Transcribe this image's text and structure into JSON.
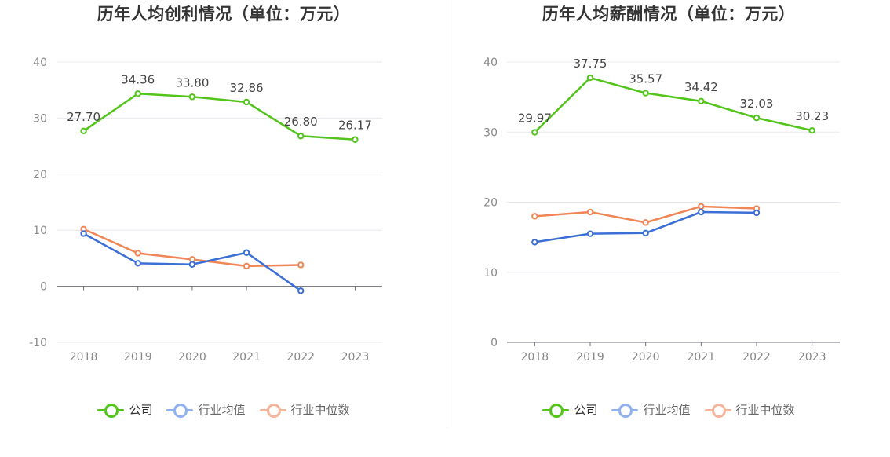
{
  "chart_data": [
    {
      "type": "line",
      "title": "历年人均创利情况（单位：万元）",
      "categories": [
        "2018",
        "2019",
        "2020",
        "2021",
        "2022",
        "2023"
      ],
      "ylim": [
        -10,
        40
      ],
      "yticks": [
        -10,
        0,
        10,
        20,
        30,
        40
      ],
      "grid": true,
      "legend_position": "bottom",
      "series": [
        {
          "name": "公司",
          "color": "#52c41a",
          "values": [
            27.7,
            34.36,
            33.8,
            32.86,
            26.8,
            26.17
          ],
          "labels": [
            "27.70",
            "34.36",
            "33.80",
            "32.86",
            "26.80",
            "26.17"
          ]
        },
        {
          "name": "行业均值",
          "color": "#3b6fd6",
          "values": [
            9.4,
            4.1,
            3.9,
            6.0,
            -0.8,
            null
          ]
        },
        {
          "name": "行业中位数",
          "color": "#f08655",
          "values": [
            10.2,
            5.9,
            4.8,
            3.6,
            3.8,
            null
          ]
        }
      ]
    },
    {
      "type": "line",
      "title": "历年人均薪酬情况（单位：万元）",
      "categories": [
        "2018",
        "2019",
        "2020",
        "2021",
        "2022",
        "2023"
      ],
      "ylim": [
        0,
        40
      ],
      "yticks": [
        0,
        10,
        20,
        30,
        40
      ],
      "grid": true,
      "legend_position": "bottom",
      "series": [
        {
          "name": "公司",
          "color": "#52c41a",
          "values": [
            29.97,
            37.75,
            35.57,
            34.42,
            32.03,
            30.23
          ],
          "labels": [
            "29.97",
            "37.75",
            "35.57",
            "34.42",
            "32.03",
            "30.23"
          ]
        },
        {
          "name": "行业均值",
          "color": "#3b6fd6",
          "values": [
            14.3,
            15.5,
            15.6,
            18.6,
            18.5,
            null
          ]
        },
        {
          "name": "行业中位数",
          "color": "#f08655",
          "values": [
            18.0,
            18.6,
            17.1,
            19.4,
            19.1,
            null
          ]
        }
      ]
    }
  ],
  "legend_colors": {
    "公司": "#52c41a",
    "行业均值": "#8fb1f0",
    "行业中位数": "#f8b49a"
  }
}
